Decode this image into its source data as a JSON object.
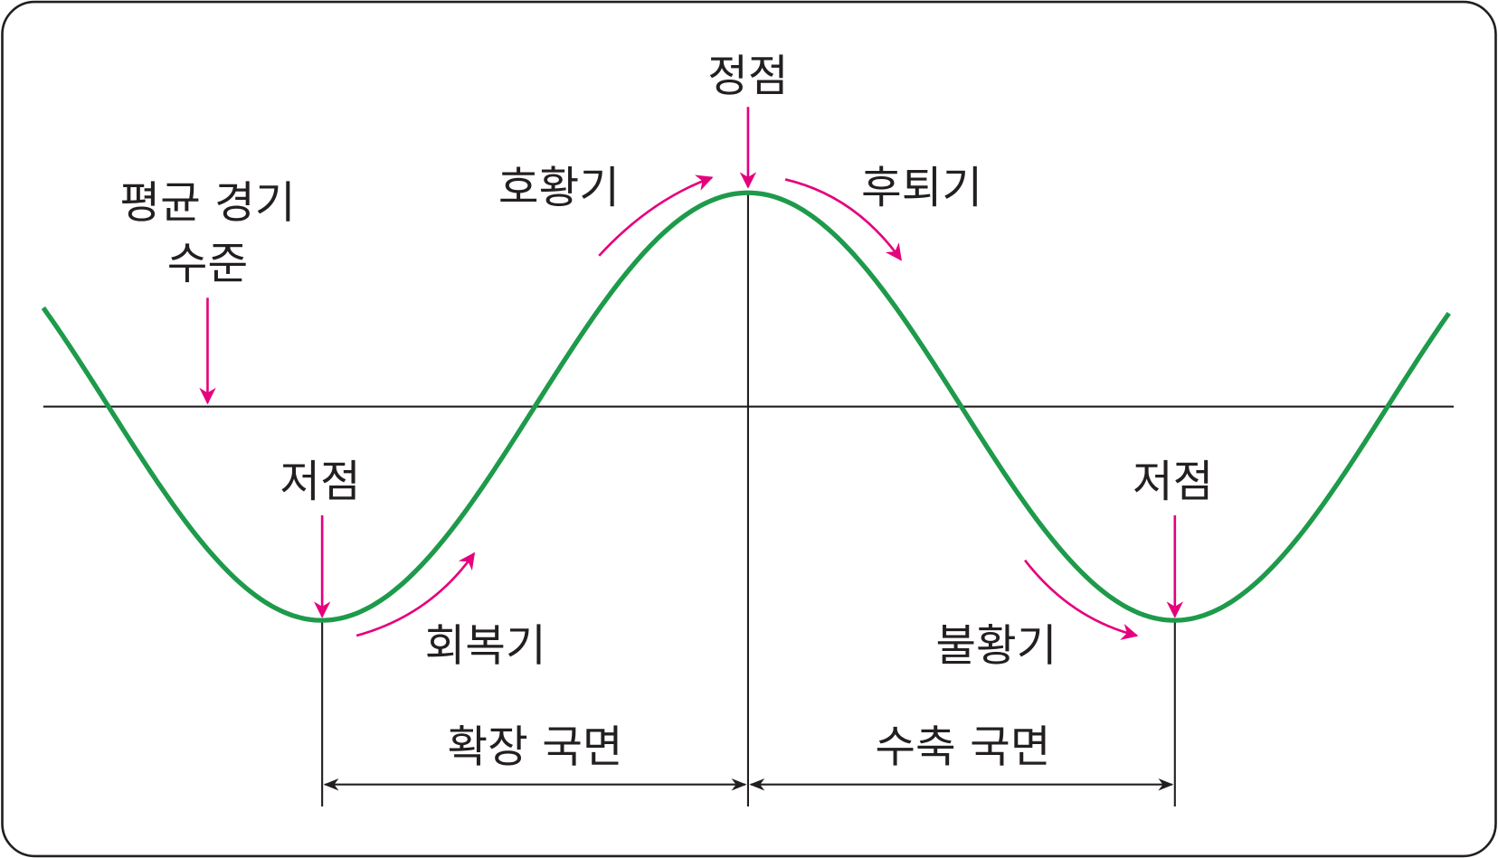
{
  "labels": {
    "peak": "정점",
    "average_level_line1": "평균 경기",
    "average_level_line2": "수준",
    "boom": "호황기",
    "recession": "후퇴기",
    "trough_left": "저점",
    "trough_right": "저점",
    "recovery": "회복기",
    "depression": "불황기",
    "expansion_phase": "확장 국면",
    "contraction_phase": "수축 국면"
  },
  "colors": {
    "curve": "#1e9a4b",
    "arrows": "#e5007d",
    "lines": "#231f20"
  }
}
